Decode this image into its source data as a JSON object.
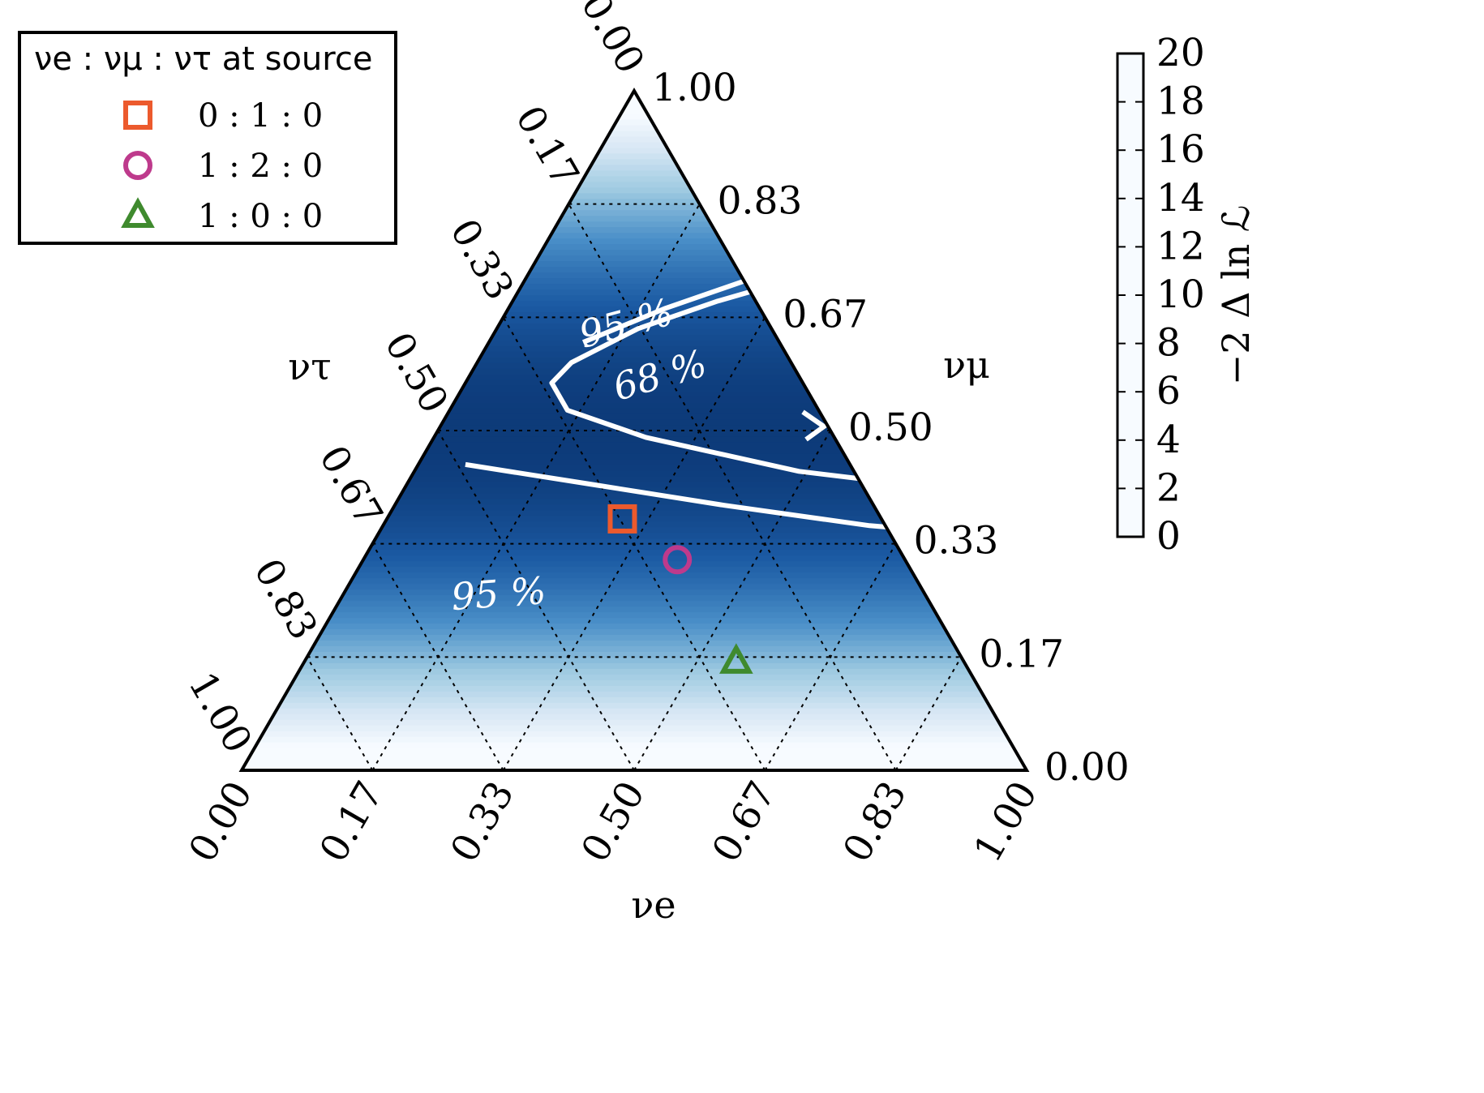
{
  "chart_data": {
    "type": "ternary-heatmap",
    "axes": {
      "bottom": {
        "label": "νe",
        "ticks": [
          "0.00",
          "0.17",
          "0.33",
          "0.50",
          "0.67",
          "0.83",
          "1.00"
        ]
      },
      "right": {
        "label": "νμ",
        "ticks": [
          "0.00",
          "0.17",
          "0.33",
          "0.50",
          "0.67",
          "0.83",
          "1.00"
        ]
      },
      "left": {
        "label": "ντ",
        "ticks": [
          "0.00",
          "0.17",
          "0.33",
          "0.50",
          "0.67",
          "0.83",
          "1.00"
        ]
      },
      "grid": true
    },
    "colorbar": {
      "label": "−2 Δ ln ℒ",
      "range": [
        0,
        20
      ],
      "ticks": [
        "0",
        "2",
        "4",
        "6",
        "8",
        "10",
        "12",
        "14",
        "16",
        "18",
        "20"
      ],
      "colormap": [
        "#f7fbff",
        "#d6e6f4",
        "#9ecae1",
        "#4a8fc8",
        "#1b5aa3",
        "#08306b"
      ]
    },
    "legend": {
      "title": "νe : νμ : ντ at source",
      "position": "top-left",
      "entries": [
        {
          "label": "0 : 1 : 0",
          "marker": "square",
          "color": "#ec5a2d",
          "point": {
            "e": 0.3,
            "mu": 0.37,
            "tau": 0.33
          }
        },
        {
          "label": "1 : 2 : 0",
          "marker": "circle",
          "color": "#be3a8c",
          "point": {
            "e": 0.4,
            "mu": 0.31,
            "tau": 0.29
          }
        },
        {
          "label": "1 : 0 : 0",
          "marker": "triangle",
          "color": "#3f8a2e",
          "point": {
            "e": 0.55,
            "mu": 0.16,
            "tau": 0.29
          }
        }
      ]
    },
    "contours": [
      {
        "label": "68 %",
        "points": [
          [
            0.92,
            0.39
          ],
          [
            0.72,
            0.41
          ],
          [
            0.49,
            0.44
          ],
          [
            0.27,
            0.49
          ],
          [
            0.15,
            0.53
          ],
          [
            0.11,
            0.57
          ],
          [
            0.12,
            0.6
          ],
          [
            0.18,
            0.65
          ],
          [
            0.26,
            0.69
          ],
          [
            0.36,
            0.73
          ],
          [
            0.47,
            0.78
          ],
          [
            0.58,
            0.82
          ],
          [
            0.67,
            0.85
          ]
        ]
      },
      {
        "label": "95 %",
        "points": [
          [
            0.64,
            0.88
          ],
          [
            0.53,
            0.83
          ],
          [
            0.42,
            0.78
          ],
          [
            0.3,
            0.73
          ],
          [
            0.2,
            0.68
          ],
          [
            0.12,
            0.63
          ]
        ]
      },
      {
        "label": "95 %",
        "points": [
          [
            0.84,
            0.34
          ],
          [
            0.62,
            0.36
          ],
          [
            0.42,
            0.39
          ],
          [
            0.24,
            0.42
          ],
          [
            0.06,
            0.45
          ]
        ]
      }
    ]
  }
}
